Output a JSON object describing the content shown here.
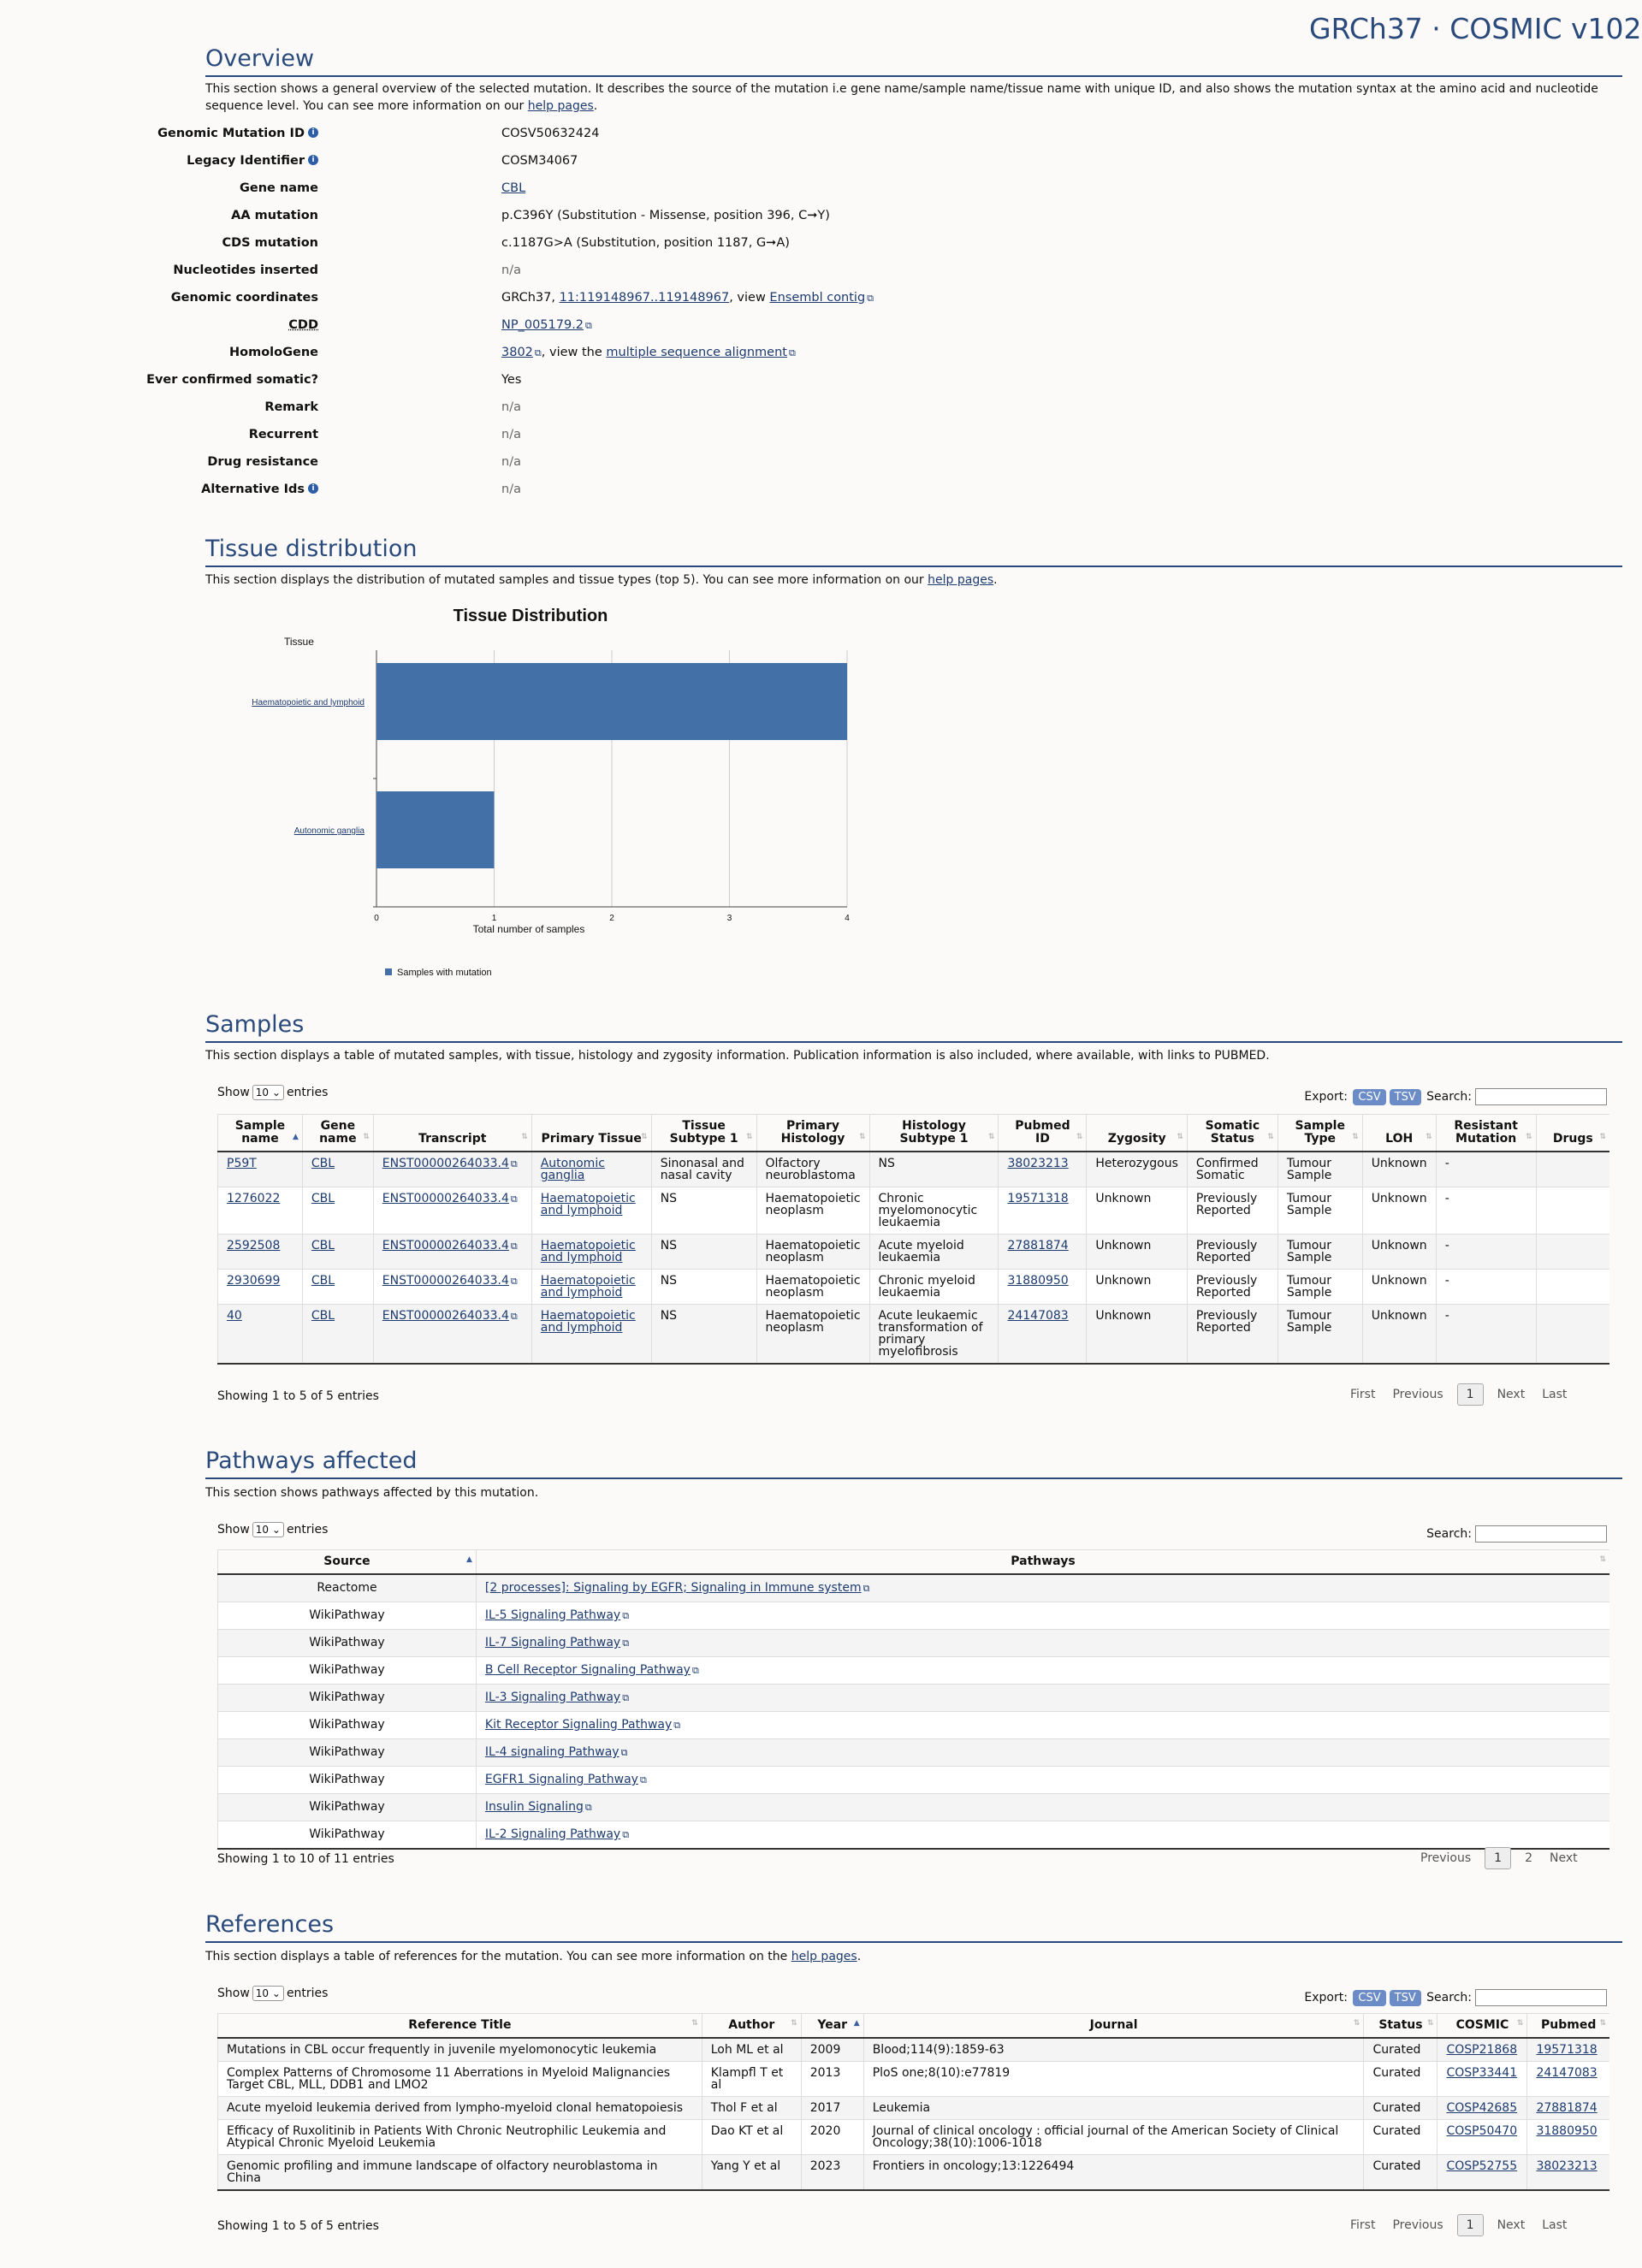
{
  "header": {
    "title": "GRCh37 · COSMIC v102"
  },
  "overview": {
    "heading": "Overview",
    "desc_pre": "This section shows a general overview of the selected mutation. It describes the source of the mutation i.e gene name/sample name/tissue name with unique ID, and also shows the mutation syntax at the amino acid and nucleotide sequence level. You can see more information on our ",
    "help_link": "help pages",
    "desc_post": ".",
    "fields": {
      "genomic_mutation_id": {
        "label": "Genomic Mutation ID",
        "value": "COSV50632424"
      },
      "legacy_identifier": {
        "label": "Legacy Identifier",
        "value": "COSM34067"
      },
      "gene_name": {
        "label": "Gene name",
        "value": "CBL"
      },
      "aa_mutation": {
        "label": "AA mutation",
        "value": "p.C396Y (Substitution - Missense, position 396, C➞Y)"
      },
      "cds_mutation": {
        "label": "CDS mutation",
        "value": "c.1187G>A (Substitution, position 1187, G➞A)"
      },
      "nucleotides_inserted": {
        "label": "Nucleotides inserted",
        "value": "n/a"
      },
      "genomic_coordinates": {
        "label": "Genomic coordinates",
        "prefix": "GRCh37, ",
        "coord_link": "11:119148967..119148967",
        "view_text": ", view ",
        "ensembl_link": "Ensembl contig"
      },
      "cdd": {
        "label": "CDD",
        "value": "NP_005179.2"
      },
      "homologene": {
        "label": "HomoloGene",
        "value": "3802",
        "view_text": ", view the ",
        "msa_link": "multiple sequence alignment"
      },
      "ever_confirmed": {
        "label": "Ever confirmed somatic?",
        "value": "Yes"
      },
      "remark": {
        "label": "Remark",
        "value": "n/a"
      },
      "recurrent": {
        "label": "Recurrent",
        "value": "n/a"
      },
      "drug_resistance": {
        "label": "Drug resistance",
        "value": "n/a"
      },
      "alternative_ids": {
        "label": "Alternative Ids",
        "value": "n/a"
      }
    }
  },
  "tissue": {
    "heading": "Tissue distribution",
    "desc_pre": "This section displays the distribution of mutated samples and tissue types (top 5). You can see more information on our ",
    "help_link": "help pages",
    "desc_post": "."
  },
  "chart_data": {
    "type": "bar",
    "orientation": "horizontal",
    "title": "Tissue Distribution",
    "ylabel": "Tissue",
    "xlabel": "Total number of samples",
    "categories": [
      "Haematopoietic and lymphoid",
      "Autonomic ganglia"
    ],
    "series": [
      {
        "name": "Samples with mutation",
        "values": [
          4,
          1
        ]
      }
    ],
    "xlim": [
      0,
      4
    ],
    "ticks": [
      "0",
      "1",
      "2",
      "3",
      "4"
    ],
    "grid": true,
    "legend": "bottom-left",
    "bar_color": "#4470a8"
  },
  "samples": {
    "heading": "Samples",
    "desc": "This section displays a table of mutated samples, with tissue, histology and zygosity information. Publication information is also included, where available, with links to PUBMED.",
    "show": "Show",
    "length": "10",
    "entries": "entries",
    "export_label": "Export:",
    "csv": "CSV",
    "tsv": "TSV",
    "search_label": "Search:",
    "columns": [
      "Sample name",
      "Gene name",
      "Transcript",
      "Primary Tissue",
      "Tissue Subtype 1",
      "Primary Histology",
      "Histology Subtype 1",
      "Pubmed ID",
      "Zygosity",
      "Somatic Status",
      "Sample Type",
      "LOH",
      "Resistant Mutation",
      "Drugs"
    ],
    "rows": [
      [
        "P59T",
        "CBL",
        "ENST00000264033.4",
        "Autonomic ganglia",
        "Sinonasal and nasal cavity",
        "Olfactory neuroblastoma",
        "NS",
        "38023213",
        "Heterozygous",
        "Confirmed Somatic",
        "Tumour Sample",
        "Unknown",
        "-",
        ""
      ],
      [
        "1276022",
        "CBL",
        "ENST00000264033.4",
        "Haematopoietic and lymphoid",
        "NS",
        "Haematopoietic neoplasm",
        "Chronic myelomonocytic leukaemia",
        "19571318",
        "Unknown",
        "Previously Reported",
        "Tumour Sample",
        "Unknown",
        "-",
        ""
      ],
      [
        "2592508",
        "CBL",
        "ENST00000264033.4",
        "Haematopoietic and lymphoid",
        "NS",
        "Haematopoietic neoplasm",
        "Acute myeloid leukaemia",
        "27881874",
        "Unknown",
        "Previously Reported",
        "Tumour Sample",
        "Unknown",
        "-",
        ""
      ],
      [
        "2930699",
        "CBL",
        "ENST00000264033.4",
        "Haematopoietic and lymphoid",
        "NS",
        "Haematopoietic neoplasm",
        "Chronic myeloid leukaemia",
        "31880950",
        "Unknown",
        "Previously Reported",
        "Tumour Sample",
        "Unknown",
        "-",
        ""
      ],
      [
        "40",
        "CBL",
        "ENST00000264033.4",
        "Haematopoietic and lymphoid",
        "NS",
        "Haematopoietic neoplasm",
        "Acute leukaemic transformation of primary myelofibrosis",
        "24147083",
        "Unknown",
        "Previously Reported",
        "Tumour Sample",
        "Unknown",
        "-",
        ""
      ]
    ],
    "info": "Showing 1 to 5 of 5 entries",
    "pager": {
      "first": "First",
      "previous": "Previous",
      "current": "1",
      "next": "Next",
      "last": "Last"
    }
  },
  "pathways": {
    "heading": "Pathways affected",
    "desc": "This section shows pathways affected by this mutation.",
    "show": "Show",
    "length": "10",
    "entries": "entries",
    "search_label": "Search:",
    "columns": [
      "Source",
      "Pathways"
    ],
    "rows": [
      [
        "Reactome",
        "[2 processes]: Signaling by EGFR; Signaling in Immune system"
      ],
      [
        "WikiPathway",
        "IL-5 Signaling Pathway"
      ],
      [
        "WikiPathway",
        "IL-7 Signaling Pathway"
      ],
      [
        "WikiPathway",
        "B Cell Receptor Signaling Pathway"
      ],
      [
        "WikiPathway",
        "IL-3 Signaling Pathway"
      ],
      [
        "WikiPathway",
        "Kit Receptor Signaling Pathway"
      ],
      [
        "WikiPathway",
        "IL-4 signaling Pathway"
      ],
      [
        "WikiPathway",
        "EGFR1 Signaling Pathway"
      ],
      [
        "WikiPathway",
        "Insulin Signaling"
      ],
      [
        "WikiPathway",
        "IL-2 Signaling Pathway"
      ]
    ],
    "info": "Showing 1 to 10 of 11 entries",
    "pager": {
      "previous": "Previous",
      "current": "1",
      "page2": "2",
      "next": "Next"
    }
  },
  "references": {
    "heading": "References",
    "desc_pre": "This section displays a table of references for the mutation. You can see more information on the ",
    "help_link": "help pages",
    "desc_post": ".",
    "show": "Show",
    "length": "10",
    "entries": "entries",
    "export_label": "Export:",
    "csv": "CSV",
    "tsv": "TSV",
    "search_label": "Search:",
    "columns": [
      "Reference Title",
      "Author",
      "Year",
      "Journal",
      "Status",
      "COSMIC",
      "Pubmed"
    ],
    "rows": [
      [
        "Mutations in CBL occur frequently in juvenile myelomonocytic leukemia",
        "Loh ML et al",
        "2009",
        "Blood;114(9):1859-63",
        "Curated",
        "COSP21868",
        "19571318"
      ],
      [
        "Complex Patterns of Chromosome 11 Aberrations in Myeloid Malignancies Target CBL, MLL, DDB1 and LMO2",
        "Klampfl T et al",
        "2013",
        "PloS one;8(10):e77819",
        "Curated",
        "COSP33441",
        "24147083"
      ],
      [
        "Acute myeloid leukemia derived from lympho-myeloid clonal hematopoiesis",
        "Thol F et al",
        "2017",
        "Leukemia",
        "Curated",
        "COSP42685",
        "27881874"
      ],
      [
        "Efficacy of Ruxolitinib in Patients With Chronic Neutrophilic Leukemia and Atypical Chronic Myeloid Leukemia",
        "Dao KT et al",
        "2020",
        "Journal of clinical oncology : official journal of the American Society of Clinical Oncology;38(10):1006-1018",
        "Curated",
        "COSP50470",
        "31880950"
      ],
      [
        "Genomic profiling and immune landscape of olfactory neuroblastoma in China",
        "Yang Y et al",
        "2023",
        "Frontiers in oncology;13:1226494",
        "Curated",
        "COSP52755",
        "38023213"
      ]
    ],
    "info": "Showing 1 to 5 of 5 entries",
    "pager": {
      "first": "First",
      "previous": "Previous",
      "current": "1",
      "next": "Next",
      "last": "Last"
    }
  }
}
